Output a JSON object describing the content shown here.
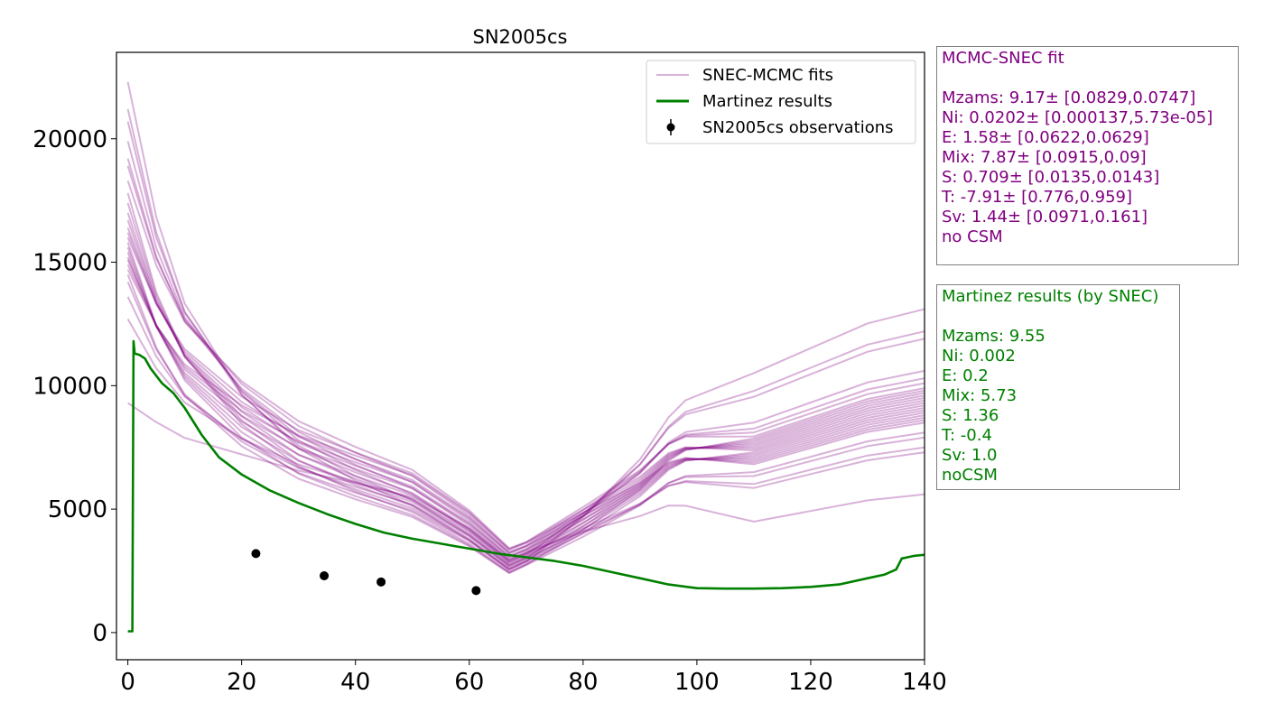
{
  "chart_data": {
    "type": "line",
    "title": "SN2005cs",
    "xlabel": "",
    "ylabel": "",
    "xlim": [
      -2,
      140
    ],
    "ylim": [
      -1100,
      23500
    ],
    "x_ticks": [
      0,
      20,
      40,
      60,
      80,
      100,
      120,
      140
    ],
    "y_ticks": [
      0,
      5000,
      10000,
      15000,
      20000
    ],
    "grid": false,
    "legend_position": "top-right",
    "legend": [
      {
        "label": "SNEC-MCMC fits",
        "style": "line",
        "color": "#800080"
      },
      {
        "label": "Martinez results",
        "style": "line",
        "color": "#008000"
      },
      {
        "label": "SN2005cs observations",
        "style": "errorbar-point",
        "color": "#000000"
      }
    ],
    "series": [
      {
        "name": "Martinez results",
        "color": "#008000",
        "x": [
          0,
          0.8,
          1.0,
          1.2,
          2,
          3,
          4,
          6,
          8,
          10,
          13,
          16,
          20,
          25,
          30,
          35,
          40,
          45,
          50,
          55,
          60,
          65,
          70,
          75,
          80,
          85,
          90,
          95,
          100,
          105,
          110,
          115,
          120,
          125,
          130,
          133,
          135,
          136,
          137,
          138,
          140
        ],
        "y": [
          50,
          50,
          11800,
          11300,
          11250,
          11100,
          10700,
          10100,
          9700,
          9100,
          8000,
          7100,
          6400,
          5750,
          5250,
          4800,
          4400,
          4050,
          3800,
          3600,
          3400,
          3200,
          3050,
          2900,
          2700,
          2450,
          2200,
          1950,
          1800,
          1780,
          1780,
          1800,
          1850,
          1950,
          2200,
          2350,
          2550,
          3000,
          3050,
          3100,
          3150
        ]
      }
    ],
    "mcmc_fits": {
      "name": "SNEC-MCMC fits",
      "color": "#800080",
      "x": [
        0,
        5,
        10,
        20,
        30,
        40,
        50,
        60,
        67,
        70,
        80,
        90,
        95,
        98,
        110,
        120,
        130,
        140
      ],
      "anchor_y": [
        15800,
        12800,
        10800,
        8700,
        7300,
        6400,
        5600,
        4200,
        2900,
        3200,
        4500,
        5900,
        6900,
        7200,
        7300,
        8000,
        8700,
        9100
      ],
      "peak_values_at_day_0": [
        22300,
        21200,
        20700,
        19900,
        19200,
        18900,
        18300,
        17800,
        17400,
        17000,
        16700,
        16400,
        16200,
        16000,
        15800,
        15600,
        15400,
        15200,
        15100,
        14900,
        14700,
        14500,
        14200,
        13600,
        12700,
        9300
      ],
      "late_values_at_day_140": [
        13100,
        12200,
        11900,
        10600,
        10300,
        10100,
        9900,
        9800,
        9700,
        9600,
        9500,
        9400,
        9300,
        9200,
        9100,
        9000,
        8900,
        8800,
        8700,
        8600,
        8500,
        8100,
        7900,
        7500,
        7300,
        5600
      ]
    },
    "observations": {
      "name": "SN2005cs observations",
      "color": "#000000",
      "x": [
        22.5,
        34.5,
        44.5,
        61.2
      ],
      "y": [
        3200,
        2300,
        2050,
        1700
      ]
    }
  },
  "mcmc_box": {
    "title": "MCMC-SNEC fit",
    "lines": [
      "Mzams: 9.17± [0.0829,0.0747]",
      "Ni: 0.0202± [0.000137,5.73e-05]",
      "E: 1.58± [0.0622,0.0629]",
      "Mix: 7.87± [0.0915,0.09]",
      "S: 0.709± [0.0135,0.0143]",
      "T: -7.91± [0.776,0.959]",
      "Sv: 1.44± [0.0971,0.161]",
      "no CSM"
    ]
  },
  "martinez_box": {
    "title": "Martinez results (by SNEC)",
    "lines": [
      "Mzams: 9.55",
      "Ni: 0.002",
      "E: 0.2",
      "Mix: 5.73",
      "S: 1.36",
      "T: -0.4",
      "Sv: 1.0",
      "noCSM"
    ]
  }
}
